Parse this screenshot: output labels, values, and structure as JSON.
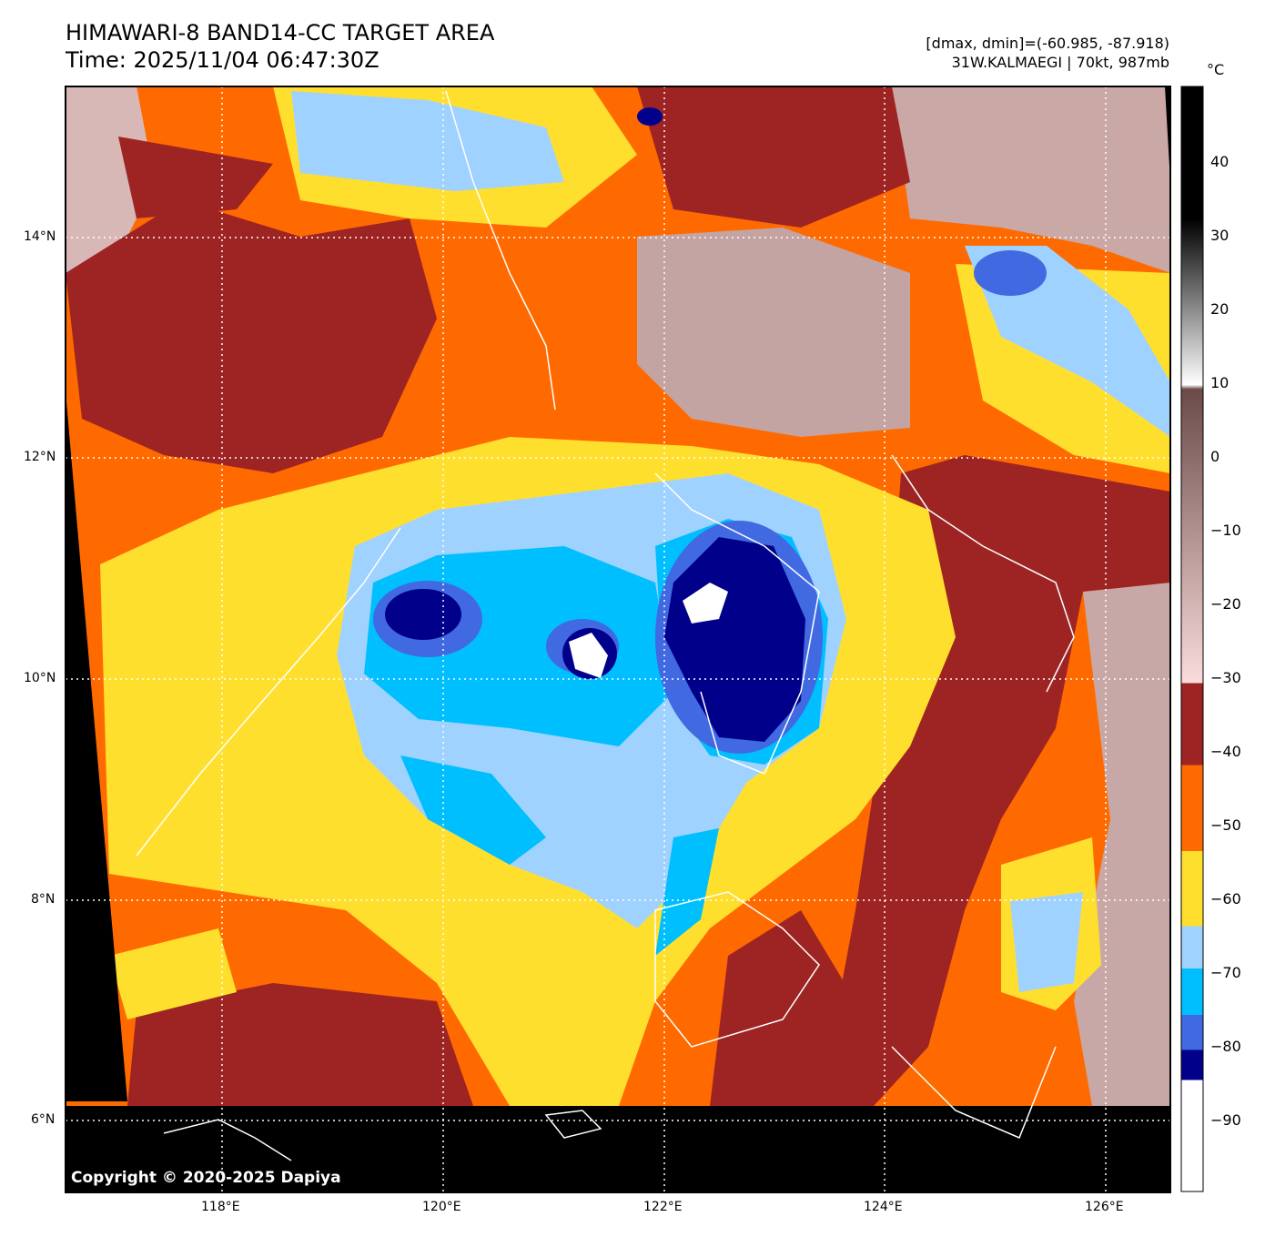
{
  "header": {
    "title": "HIMAWARI-8 BAND14-CC TARGET AREA",
    "time": "Time: 2025/11/04 06:47:30Z",
    "range_text": "[dmax, dmin]=(-60.985, -87.918)",
    "storm_text": "31W.KALMAEGI | 70kt, 987mb"
  },
  "map": {
    "lat_ticks": [
      "14°N",
      "12°N",
      "10°N",
      "8°N",
      "6°N"
    ],
    "lon_ticks": [
      "118°E",
      "120°E",
      "122°E",
      "124°E",
      "126°E"
    ],
    "copyright": "Copyright © 2020-2025 Dapiya"
  },
  "colorbar": {
    "unit": "°C",
    "range": [
      -100,
      50
    ],
    "ticks": [
      "40",
      "30",
      "20",
      "10",
      "0",
      "−10",
      "−20",
      "−30",
      "−40",
      "−50",
      "−60",
      "−70",
      "−80",
      "−90"
    ],
    "colors": {
      "brown": "#9e2424",
      "orange": "#ff6a00",
      "yellow": "#ffdf2e",
      "lightblue": "#a0d2ff",
      "cyan": "#00bfff",
      "blue": "#4169e1",
      "navy": "#00008b",
      "white": "#ffffff"
    }
  }
}
